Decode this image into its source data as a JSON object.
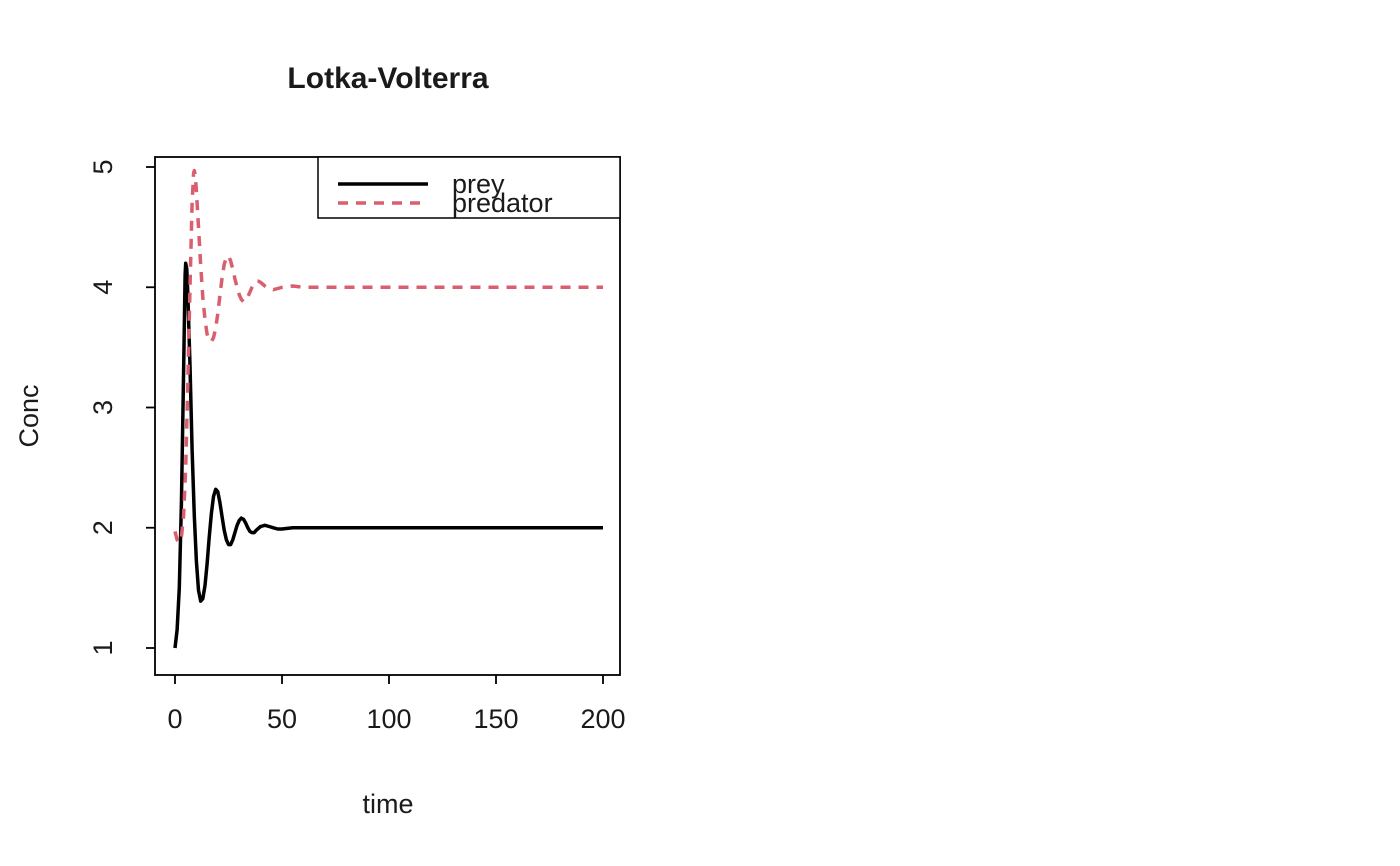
{
  "chart_data": {
    "type": "line",
    "title": "Lotka-Volterra",
    "xlabel": "time",
    "ylabel": "Conc",
    "xlim": [
      0,
      200
    ],
    "ylim": [
      1,
      5
    ],
    "xticks": [
      0,
      50,
      100,
      150,
      200
    ],
    "yticks": [
      1,
      2,
      3,
      4,
      5
    ],
    "grid": false,
    "axis_color": "#000000",
    "legend": {
      "position": "top-right",
      "entries": [
        {
          "label": "prey",
          "style": "solid",
          "color": "#000000"
        },
        {
          "label": "predator",
          "style": "dashed",
          "color": "#d95f6e"
        }
      ]
    },
    "series": [
      {
        "name": "prey",
        "color": "#000000",
        "dash": "solid",
        "steady_state": 2,
        "points": [
          [
            0,
            1.0
          ],
          [
            1,
            1.15
          ],
          [
            2,
            1.5
          ],
          [
            3,
            2.2
          ],
          [
            4,
            3.3
          ],
          [
            4.7,
            4.1
          ],
          [
            5,
            4.2
          ],
          [
            5.5,
            4.15
          ],
          [
            6,
            3.95
          ],
          [
            7,
            3.35
          ],
          [
            8,
            2.65
          ],
          [
            9,
            2.1
          ],
          [
            10,
            1.72
          ],
          [
            11,
            1.48
          ],
          [
            12,
            1.39
          ],
          [
            13,
            1.41
          ],
          [
            14,
            1.52
          ],
          [
            15,
            1.7
          ],
          [
            16,
            1.92
          ],
          [
            17,
            2.12
          ],
          [
            18,
            2.26
          ],
          [
            19,
            2.32
          ],
          [
            20,
            2.3
          ],
          [
            21,
            2.21
          ],
          [
            22,
            2.09
          ],
          [
            23,
            1.98
          ],
          [
            24,
            1.9
          ],
          [
            25,
            1.86
          ],
          [
            26,
            1.86
          ],
          [
            27,
            1.9
          ],
          [
            28,
            1.96
          ],
          [
            29,
            2.02
          ],
          [
            30,
            2.06
          ],
          [
            31,
            2.08
          ],
          [
            32,
            2.07
          ],
          [
            33,
            2.04
          ],
          [
            34,
            2.0
          ],
          [
            35,
            1.97
          ],
          [
            36,
            1.96
          ],
          [
            37,
            1.96
          ],
          [
            38,
            1.98
          ],
          [
            40,
            2.01
          ],
          [
            42,
            2.02
          ],
          [
            44,
            2.01
          ],
          [
            46,
            2.0
          ],
          [
            48,
            1.99
          ],
          [
            50,
            1.99
          ],
          [
            55,
            2.0
          ],
          [
            60,
            2.0
          ],
          [
            80,
            2.0
          ],
          [
            100,
            2.0
          ],
          [
            150,
            2.0
          ],
          [
            200,
            2.0
          ]
        ]
      },
      {
        "name": "predator",
        "color": "#d95f6e",
        "dash": "dashed",
        "steady_state": 4,
        "points": [
          [
            0,
            1.97
          ],
          [
            1,
            1.9
          ],
          [
            2,
            1.88
          ],
          [
            3,
            1.92
          ],
          [
            4,
            2.1
          ],
          [
            5,
            2.5
          ],
          [
            6,
            3.2
          ],
          [
            7,
            4.0
          ],
          [
            8,
            4.7
          ],
          [
            8.7,
            4.95
          ],
          [
            9,
            4.97
          ],
          [
            9.5,
            4.93
          ],
          [
            10,
            4.8
          ],
          [
            11,
            4.5
          ],
          [
            12,
            4.18
          ],
          [
            13,
            3.92
          ],
          [
            14,
            3.73
          ],
          [
            15,
            3.61
          ],
          [
            16,
            3.56
          ],
          [
            17,
            3.55
          ],
          [
            18,
            3.58
          ],
          [
            19,
            3.66
          ],
          [
            20,
            3.78
          ],
          [
            21,
            3.93
          ],
          [
            22,
            4.08
          ],
          [
            23,
            4.19
          ],
          [
            24,
            4.25
          ],
          [
            25,
            4.26
          ],
          [
            26,
            4.22
          ],
          [
            27,
            4.15
          ],
          [
            28,
            4.07
          ],
          [
            29,
            4.0
          ],
          [
            30,
            3.94
          ],
          [
            31,
            3.9
          ],
          [
            32,
            3.88
          ],
          [
            33,
            3.89
          ],
          [
            34,
            3.92
          ],
          [
            35,
            3.96
          ],
          [
            36,
            4.0
          ],
          [
            37,
            4.03
          ],
          [
            38,
            4.05
          ],
          [
            39,
            4.05
          ],
          [
            40,
            4.04
          ],
          [
            42,
            4.01
          ],
          [
            44,
            3.99
          ],
          [
            46,
            3.98
          ],
          [
            48,
            3.99
          ],
          [
            50,
            4.0
          ],
          [
            55,
            4.01
          ],
          [
            60,
            4.0
          ],
          [
            80,
            4.0
          ],
          [
            100,
            4.0
          ],
          [
            150,
            4.0
          ],
          [
            200,
            4.0
          ]
        ]
      }
    ]
  }
}
